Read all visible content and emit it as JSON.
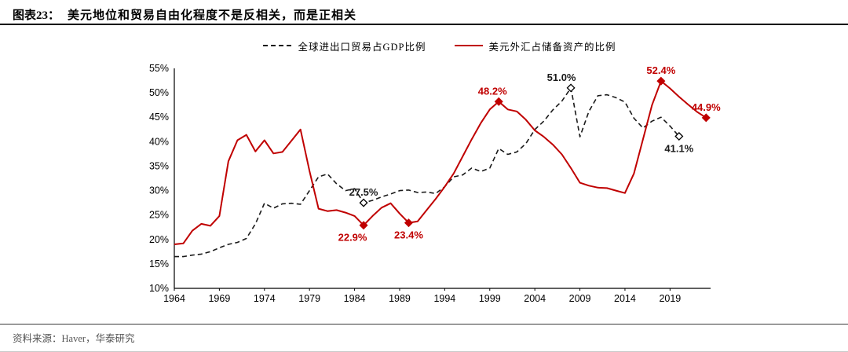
{
  "header": {
    "figure_label": "图表23：",
    "title": "美元地位和贸易自由化程度不是反相关，而是正相关"
  },
  "footer": {
    "source": "资料来源：Haver，华泰研究"
  },
  "colors": {
    "red_line": "#c00000",
    "black_line": "#1a1a1a",
    "axis": "#000000"
  },
  "chart_data": {
    "type": "line",
    "title": "美元地位和贸易自由化程度不是反相关，而是正相关",
    "xlabel": "",
    "ylabel": "",
    "ylim": [
      10,
      55
    ],
    "ytick_step": 5,
    "ytick_suffix": "%",
    "xlim": [
      1964,
      2023.5
    ],
    "xticks": [
      1964,
      1969,
      1974,
      1979,
      1984,
      1989,
      1994,
      1999,
      2004,
      2009,
      2014,
      2019
    ],
    "grid": false,
    "legend_position": "top-center",
    "series": [
      {
        "name": "全球进出口贸易占GDP比例",
        "color": "#1a1a1a",
        "style": "dashed",
        "points": [
          [
            1964,
            16.5
          ],
          [
            1965,
            16.5
          ],
          [
            1966,
            16.8
          ],
          [
            1967,
            17.0
          ],
          [
            1968,
            17.5
          ],
          [
            1969,
            18.3
          ],
          [
            1970,
            19.0
          ],
          [
            1971,
            19.4
          ],
          [
            1972,
            20.2
          ],
          [
            1973,
            23.2
          ],
          [
            1974,
            27.4
          ],
          [
            1975,
            26.4
          ],
          [
            1976,
            27.3
          ],
          [
            1977,
            27.4
          ],
          [
            1978,
            27.2
          ],
          [
            1979,
            30.0
          ],
          [
            1980,
            32.8
          ],
          [
            1981,
            33.4
          ],
          [
            1982,
            31.4
          ],
          [
            1983,
            30.0
          ],
          [
            1984,
            30.4
          ],
          [
            1985,
            27.5
          ],
          [
            1986,
            28.0
          ],
          [
            1987,
            28.7
          ],
          [
            1988,
            29.3
          ],
          [
            1989,
            30.0
          ],
          [
            1990,
            30.1
          ],
          [
            1991,
            29.6
          ],
          [
            1992,
            29.7
          ],
          [
            1993,
            29.4
          ],
          [
            1994,
            30.8
          ],
          [
            1995,
            32.8
          ],
          [
            1996,
            33.2
          ],
          [
            1997,
            34.6
          ],
          [
            1998,
            33.9
          ],
          [
            1999,
            34.6
          ],
          [
            2000,
            38.6
          ],
          [
            2001,
            37.4
          ],
          [
            2002,
            37.9
          ],
          [
            2003,
            39.6
          ],
          [
            2004,
            42.5
          ],
          [
            2005,
            44.2
          ],
          [
            2006,
            46.5
          ],
          [
            2007,
            48.3
          ],
          [
            2008,
            51.0
          ],
          [
            2009,
            41.0
          ],
          [
            2010,
            46.2
          ],
          [
            2011,
            49.4
          ],
          [
            2012,
            49.6
          ],
          [
            2013,
            49.0
          ],
          [
            2014,
            48.1
          ],
          [
            2015,
            44.8
          ],
          [
            2016,
            42.8
          ],
          [
            2017,
            44.2
          ],
          [
            2018,
            45.0
          ],
          [
            2019,
            43.2
          ],
          [
            2020,
            41.1
          ]
        ],
        "markers": [
          {
            "x": 1985,
            "y": 27.5,
            "label": "27.5%",
            "fill": "hollow",
            "pos": "above"
          },
          {
            "x": 2008,
            "y": 51.0,
            "label": "51.0%",
            "fill": "hollow",
            "pos": "above",
            "dx": -12
          },
          {
            "x": 2020,
            "y": 41.1,
            "label": "41.1%",
            "fill": "hollow",
            "pos": "below"
          }
        ]
      },
      {
        "name": "美元外汇占储备资产的比例",
        "color": "#c00000",
        "style": "solid",
        "points": [
          [
            1964,
            19.0
          ],
          [
            1965,
            19.2
          ],
          [
            1966,
            21.8
          ],
          [
            1967,
            23.2
          ],
          [
            1968,
            22.8
          ],
          [
            1969,
            24.8
          ],
          [
            1970,
            36.0
          ],
          [
            1971,
            40.3
          ],
          [
            1972,
            41.4
          ],
          [
            1973,
            38.0
          ],
          [
            1974,
            40.3
          ],
          [
            1975,
            37.6
          ],
          [
            1976,
            37.9
          ],
          [
            1977,
            40.2
          ],
          [
            1978,
            42.5
          ],
          [
            1979,
            34.0
          ],
          [
            1980,
            26.3
          ],
          [
            1981,
            25.8
          ],
          [
            1982,
            26.0
          ],
          [
            1983,
            25.5
          ],
          [
            1984,
            24.8
          ],
          [
            1985,
            22.9
          ],
          [
            1986,
            24.8
          ],
          [
            1987,
            26.5
          ],
          [
            1988,
            27.4
          ],
          [
            1989,
            25.3
          ],
          [
            1990,
            23.4
          ],
          [
            1991,
            23.7
          ],
          [
            1992,
            26.0
          ],
          [
            1993,
            28.3
          ],
          [
            1994,
            30.8
          ],
          [
            1995,
            33.5
          ],
          [
            1996,
            37.0
          ],
          [
            1997,
            40.5
          ],
          [
            1998,
            43.8
          ],
          [
            1999,
            46.6
          ],
          [
            2000,
            48.2
          ],
          [
            2001,
            46.6
          ],
          [
            2002,
            46.2
          ],
          [
            2003,
            44.5
          ],
          [
            2004,
            42.3
          ],
          [
            2005,
            41.0
          ],
          [
            2006,
            39.4
          ],
          [
            2007,
            37.4
          ],
          [
            2008,
            34.6
          ],
          [
            2009,
            31.6
          ],
          [
            2010,
            31.0
          ],
          [
            2011,
            30.6
          ],
          [
            2012,
            30.5
          ],
          [
            2013,
            30.0
          ],
          [
            2014,
            29.5
          ],
          [
            2015,
            33.5
          ],
          [
            2016,
            40.5
          ],
          [
            2017,
            47.5
          ],
          [
            2018,
            52.4
          ],
          [
            2019,
            50.9
          ],
          [
            2020,
            49.2
          ],
          [
            2021,
            47.6
          ],
          [
            2022,
            46.1
          ],
          [
            2023,
            44.9
          ]
        ],
        "markers": [
          {
            "x": 1985,
            "y": 22.9,
            "label": "22.9%",
            "fill": "solid",
            "pos": "below",
            "dx": -14
          },
          {
            "x": 1990,
            "y": 23.4,
            "label": "23.4%",
            "fill": "solid",
            "pos": "below"
          },
          {
            "x": 2000,
            "y": 48.2,
            "label": "48.2%",
            "fill": "solid",
            "pos": "above",
            "dx": -8
          },
          {
            "x": 2018,
            "y": 52.4,
            "label": "52.4%",
            "fill": "solid",
            "pos": "above"
          },
          {
            "x": 2023,
            "y": 44.9,
            "label": "44.9%",
            "fill": "solid",
            "pos": "above"
          }
        ]
      }
    ]
  }
}
